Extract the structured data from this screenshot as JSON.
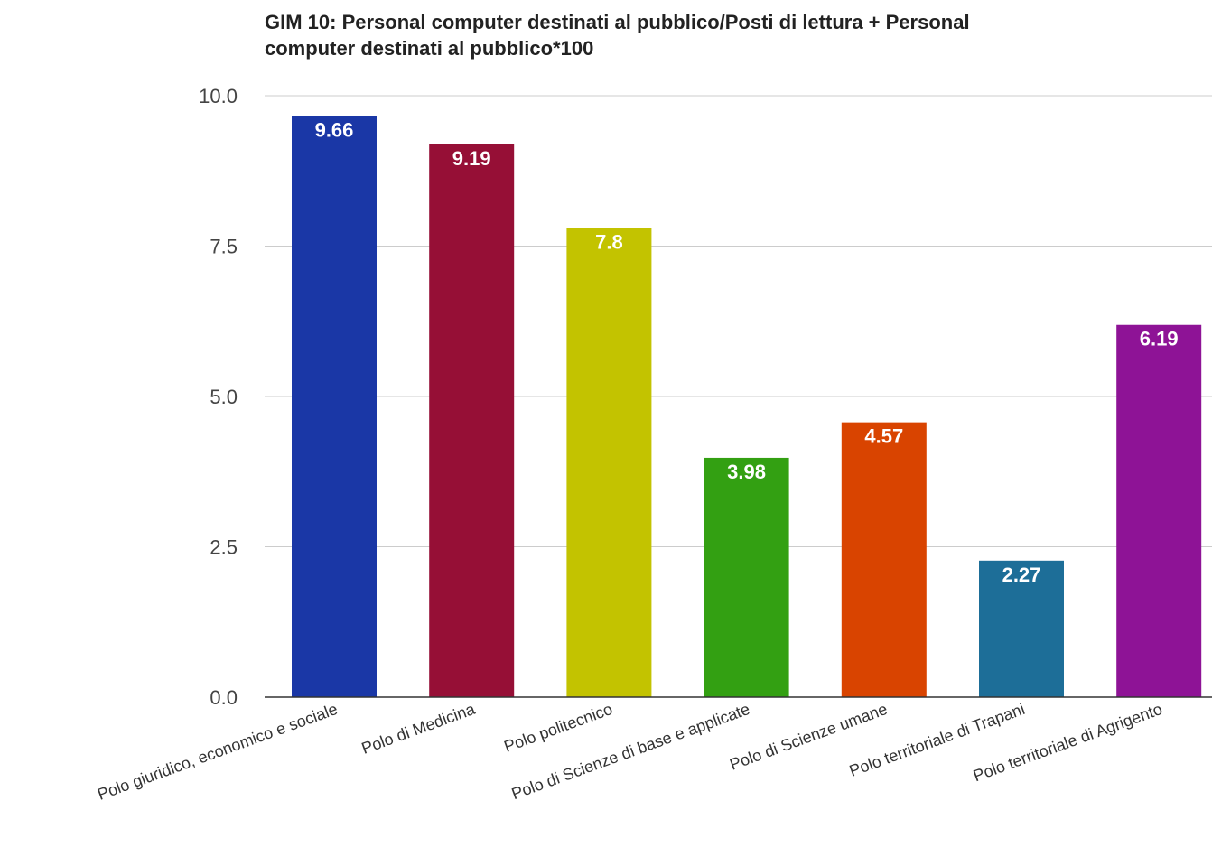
{
  "chart_data": {
    "type": "bar",
    "title": "GIM 10: Personal computer destinati al pubblico/Posti di lettura + Personal computer destinati al pubblico*100",
    "title_lines": [
      "GIM 10: Personal computer destinati al pubblico/Posti di lettura + Personal",
      "computer destinati al pubblico*100"
    ],
    "xlabel": "",
    "ylabel": "",
    "categories": [
      "Polo giuridico, economico e sociale",
      "Polo di Medicina",
      "Polo politecnico",
      "Polo di Scienze di base e applicate",
      "Polo di Scienze umane",
      "Polo territoriale di Trapani",
      "Polo territoriale di Agrigento"
    ],
    "values": [
      9.66,
      9.19,
      7.8,
      3.98,
      4.57,
      2.27,
      6.19
    ],
    "value_labels": [
      "9.66",
      "9.19",
      "7.8",
      "3.98",
      "4.57",
      "2.27",
      "6.19"
    ],
    "colors": [
      "#1a37a6",
      "#960f36",
      "#c3c300",
      "#33a012",
      "#d94400",
      "#1d6e98",
      "#8e1396"
    ],
    "ylim": [
      0,
      10
    ],
    "yticks": [
      0,
      2.5,
      5,
      7.5,
      10
    ],
    "ytick_labels": [
      "0.0",
      "2.5",
      "5.0",
      "7.5",
      "10.0"
    ],
    "grid": true,
    "legend": "none"
  }
}
